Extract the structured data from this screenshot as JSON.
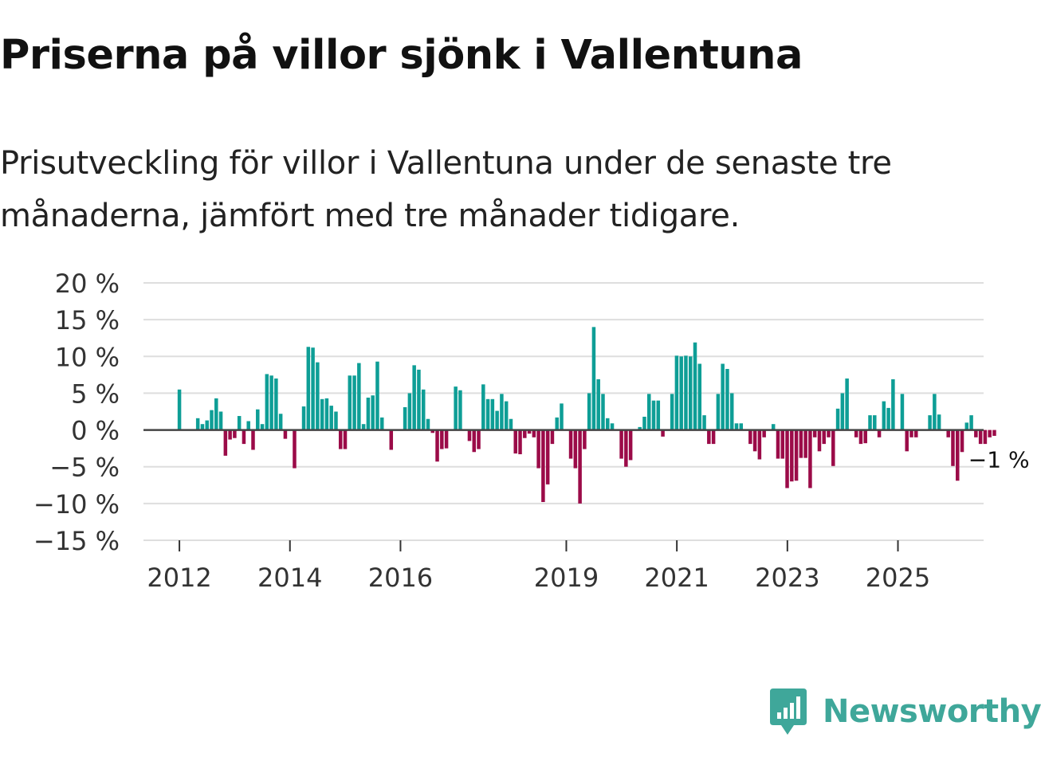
{
  "title": "Priserna på villor sjönk i Vallentuna",
  "subtitle": "Prisutveckling för villor i Vallentuna under de senaste tre månaderna, jämfört med tre månader tidigare.",
  "brand": {
    "name": "Newsworthy"
  },
  "colors": {
    "positive": "#0e9e96",
    "negative": "#9b0b48",
    "grid": "#dedede",
    "zero": "#444444"
  },
  "chart_data": {
    "type": "bar",
    "title": "Priserna på villor sjönk i Vallentuna",
    "ylabel": "",
    "xlabel": "",
    "ylim": [
      -15,
      20
    ],
    "xlim": [
      2011.35,
      2026.55
    ],
    "y_ticks": [
      {
        "value": 20,
        "label": "20 %"
      },
      {
        "value": 15,
        "label": "15 %"
      },
      {
        "value": 10,
        "label": "10 %"
      },
      {
        "value": 5,
        "label": "5 %"
      },
      {
        "value": 0,
        "label": "0 %"
      },
      {
        "value": -5,
        "label": "−5 %"
      },
      {
        "value": -10,
        "label": "−10 %"
      },
      {
        "value": -15,
        "label": "−15 %"
      }
    ],
    "x_ticks": [
      {
        "value": 2012,
        "label": "2012"
      },
      {
        "value": 2014,
        "label": "2014"
      },
      {
        "value": 2016,
        "label": "2016"
      },
      {
        "value": 2019,
        "label": "2019"
      },
      {
        "value": 2021,
        "label": "2021"
      },
      {
        "value": 2023,
        "label": "2023"
      },
      {
        "value": 2025,
        "label": "2025"
      }
    ],
    "start_year": 2012.0,
    "step": 0.0833,
    "values": [
      5.5,
      0,
      0,
      0,
      1.6,
      0.8,
      1.3,
      2.7,
      4.3,
      2.5,
      -3.5,
      -1.3,
      -1.1,
      1.9,
      -1.9,
      1.2,
      -2.7,
      2.8,
      0.8,
      7.6,
      7.4,
      7.0,
      2.2,
      -1.2,
      0,
      -5.2,
      0,
      3.2,
      11.3,
      11.2,
      9.2,
      4.2,
      4.3,
      3.3,
      2.5,
      -2.6,
      -2.6,
      7.4,
      7.4,
      9.1,
      0.8,
      4.4,
      4.7,
      9.3,
      1.7,
      0,
      -2.7,
      0,
      0,
      3.1,
      5.0,
      8.8,
      8.2,
      5.5,
      1.5,
      -0.4,
      -4.3,
      -2.6,
      -2.5,
      0,
      5.9,
      5.4,
      0,
      -1.5,
      -3.0,
      -2.6,
      6.2,
      4.2,
      4.2,
      2.6,
      4.9,
      3.9,
      1.5,
      -3.2,
      -3.3,
      -1.1,
      -0.5,
      -1.0,
      -5.2,
      -9.8,
      -7.4,
      -1.9,
      1.7,
      3.6,
      0,
      -3.9,
      -5.2,
      -10.0,
      -2.6,
      5.0,
      14.0,
      6.9,
      4.9,
      1.6,
      0.9,
      0,
      -3.9,
      -5.0,
      -4.1,
      0,
      0.4,
      1.8,
      4.9,
      4.0,
      4.0,
      -0.9,
      0,
      4.9,
      10.1,
      10.0,
      10.1,
      10.0,
      11.9,
      9.0,
      2.0,
      -1.9,
      -1.9,
      4.9,
      9.0,
      8.3,
      5.0,
      0.9,
      0.9,
      0,
      -1.9,
      -2.9,
      -4.0,
      -1.0,
      0,
      0.8,
      -3.9,
      -3.9,
      -7.9,
      -7.0,
      -6.9,
      -3.8,
      -3.8,
      -7.9,
      -1.0,
      -2.9,
      -1.9,
      -1.0,
      -4.9,
      2.9,
      5.0,
      7.0,
      0,
      -1.0,
      -1.9,
      -1.8,
      2.0,
      2.0,
      -1.0,
      3.9,
      3.0,
      6.9,
      0,
      4.9,
      -2.9,
      -1.0,
      -1.0,
      0,
      0,
      2.0,
      4.9,
      2.1,
      0,
      -1.0,
      -4.9,
      -6.9,
      -3.0,
      1.0,
      2.0,
      -1.0,
      -1.9,
      -1.9,
      -1.0,
      -0.8
    ],
    "end_label": "−1 %"
  }
}
